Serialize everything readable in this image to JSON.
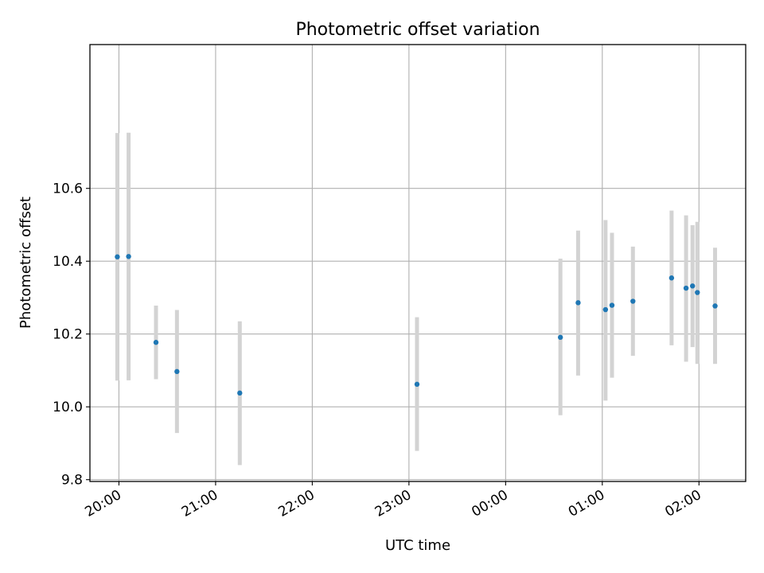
{
  "chart_data": {
    "type": "scatter",
    "title": "Photometric offset variation",
    "xlabel": "UTC time",
    "ylabel": "Photometric offset",
    "x_axis": {
      "kind": "time",
      "range": [
        "19:42",
        "02:29"
      ],
      "ticks": [
        "20:00",
        "21:00",
        "22:00",
        "23:00",
        "00:00",
        "01:00",
        "02:00"
      ]
    },
    "y_axis": {
      "range": [
        9.795,
        10.995
      ],
      "ticks": [
        "9.8",
        "10.0",
        "10.2",
        "10.4",
        "10.6"
      ]
    },
    "grid": true,
    "marker_color": "#1f77b4",
    "errorbar_color": "#d3d3d3",
    "points": [
      {
        "x": "19:59",
        "y": 10.412,
        "low": 10.072,
        "high": 10.752
      },
      {
        "x": "20:06",
        "y": 10.413,
        "low": 10.073,
        "high": 10.753
      },
      {
        "x": "20:23",
        "y": 10.177,
        "low": 10.076,
        "high": 10.278
      },
      {
        "x": "20:36",
        "y": 10.097,
        "low": 9.928,
        "high": 10.266
      },
      {
        "x": "21:15",
        "y": 10.038,
        "low": 9.84,
        "high": 10.235
      },
      {
        "x": "23:05",
        "y": 10.062,
        "low": 9.879,
        "high": 10.246
      },
      {
        "x": "00:34",
        "y": 10.191,
        "low": 9.977,
        "high": 10.407
      },
      {
        "x": "00:45",
        "y": 10.286,
        "low": 10.086,
        "high": 10.484
      },
      {
        "x": "01:02",
        "y": 10.267,
        "low": 10.017,
        "high": 10.513
      },
      {
        "x": "01:06",
        "y": 10.279,
        "low": 10.08,
        "high": 10.478
      },
      {
        "x": "01:19",
        "y": 10.29,
        "low": 10.14,
        "high": 10.44
      },
      {
        "x": "01:43",
        "y": 10.354,
        "low": 10.169,
        "high": 10.539
      },
      {
        "x": "01:52",
        "y": 10.326,
        "low": 10.124,
        "high": 10.526
      },
      {
        "x": "01:56",
        "y": 10.332,
        "low": 10.164,
        "high": 10.499
      },
      {
        "x": "01:59",
        "y": 10.314,
        "low": 10.118,
        "high": 10.508
      },
      {
        "x": "02:10",
        "y": 10.277,
        "low": 10.118,
        "high": 10.437
      }
    ]
  }
}
